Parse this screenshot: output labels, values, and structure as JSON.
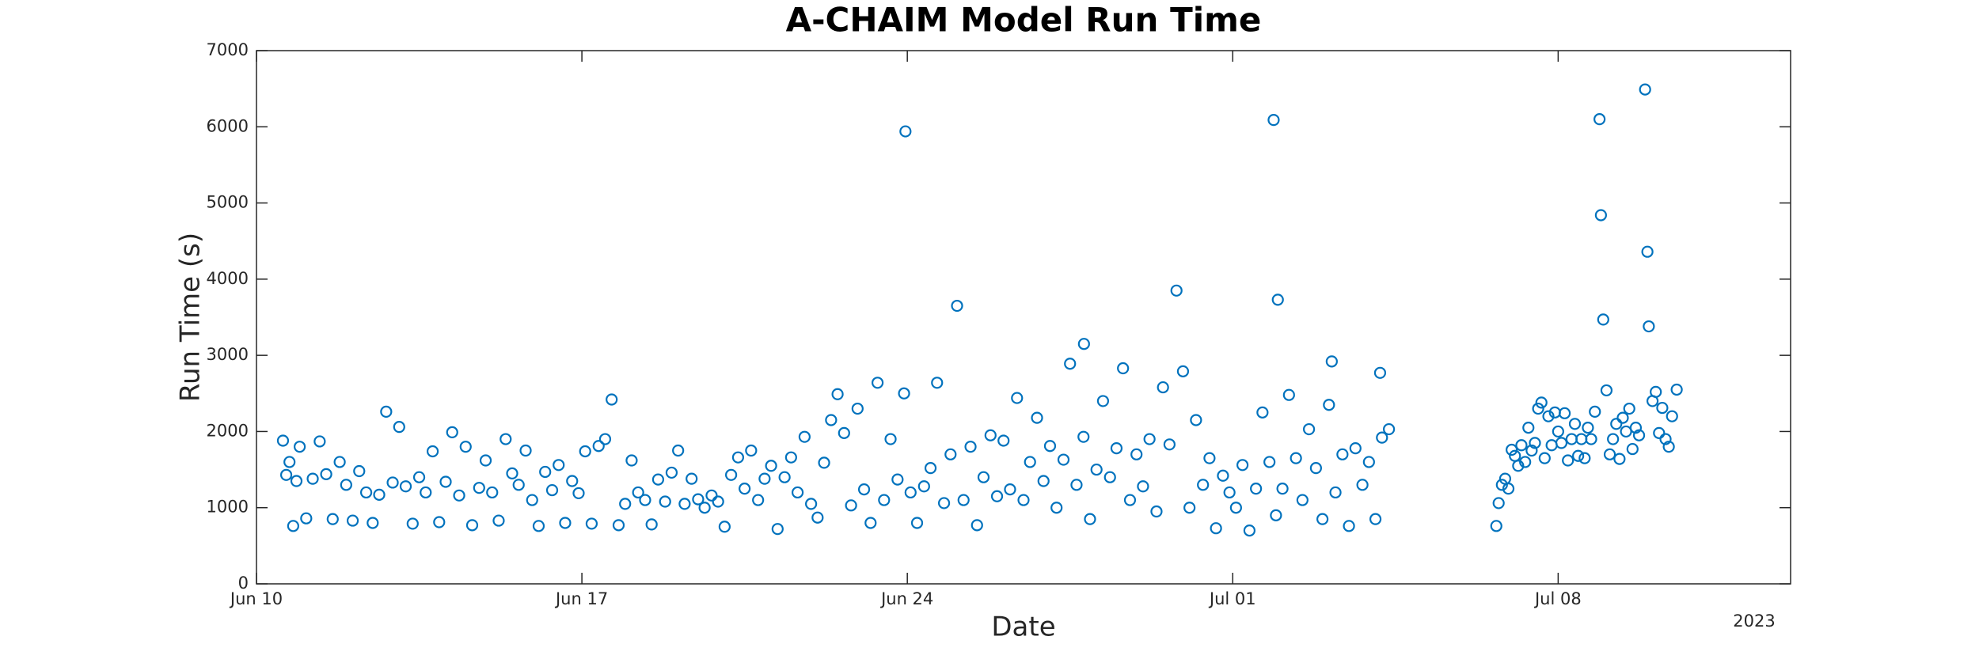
{
  "chart_data": {
    "type": "scatter",
    "title": "A-CHAIM Model Run Time",
    "xlabel": "Date",
    "ylabel": "Run Time (s)",
    "x_secondary_label": "2023",
    "color": "#0072bd",
    "grid": false,
    "xlim": [
      0,
      33
    ],
    "xticks": [
      {
        "value": 0,
        "label": "Jun 10"
      },
      {
        "value": 7,
        "label": "Jun 17"
      },
      {
        "value": 14,
        "label": "Jun 24"
      },
      {
        "value": 21,
        "label": "Jul 01"
      },
      {
        "value": 28,
        "label": "Jul 08"
      }
    ],
    "ylim": [
      0,
      7000
    ],
    "yticks": [
      0,
      1000,
      2000,
      3000,
      4000,
      5000,
      6000,
      7000
    ],
    "x": [
      0.57,
      0.64,
      0.71,
      0.79,
      0.86,
      0.93,
      1.07,
      1.21,
      1.36,
      1.5,
      1.64,
      1.79,
      1.93,
      2.07,
      2.21,
      2.36,
      2.5,
      2.64,
      2.79,
      2.93,
      3.07,
      3.21,
      3.36,
      3.5,
      3.64,
      3.79,
      3.93,
      4.07,
      4.21,
      4.36,
      4.5,
      4.64,
      4.79,
      4.93,
      5.07,
      5.21,
      5.36,
      5.5,
      5.64,
      5.79,
      5.93,
      6.07,
      6.21,
      6.36,
      6.5,
      6.64,
      6.79,
      6.93,
      7.07,
      7.21,
      7.36,
      7.5,
      7.64,
      7.79,
      7.93,
      8.07,
      8.21,
      8.36,
      8.5,
      8.64,
      8.79,
      8.93,
      9.07,
      9.21,
      9.36,
      9.5,
      9.64,
      9.79,
      9.93,
      10.07,
      10.21,
      10.36,
      10.5,
      10.64,
      10.79,
      10.93,
      11.07,
      11.21,
      11.36,
      11.5,
      11.64,
      11.79,
      11.93,
      12.07,
      12.21,
      12.36,
      12.5,
      12.64,
      12.79,
      12.93,
      13.07,
      13.21,
      13.36,
      13.5,
      13.64,
      13.79,
      13.93,
      13.96,
      14.07,
      14.21,
      14.36,
      14.5,
      14.64,
      14.79,
      14.93,
      15.07,
      15.21,
      15.36,
      15.5,
      15.64,
      15.79,
      15.93,
      16.07,
      16.21,
      16.36,
      16.5,
      16.64,
      16.79,
      16.93,
      17.07,
      17.21,
      17.36,
      17.5,
      17.64,
      17.79,
      17.8,
      17.93,
      18.07,
      18.21,
      18.36,
      18.5,
      18.64,
      18.79,
      18.93,
      19.07,
      19.21,
      19.36,
      19.5,
      19.64,
      19.79,
      19.93,
      20.07,
      20.21,
      20.36,
      20.5,
      20.64,
      20.79,
      20.93,
      21.07,
      21.21,
      21.36,
      21.5,
      21.64,
      21.79,
      21.88,
      21.93,
      21.97,
      22.07,
      22.21,
      22.36,
      22.5,
      22.64,
      22.79,
      22.93,
      23.07,
      23.13,
      23.21,
      23.36,
      23.5,
      23.64,
      23.79,
      23.93,
      24.07,
      24.17,
      24.21,
      24.36,
      26.67,
      26.72,
      26.79,
      26.86,
      26.93,
      27.0,
      27.07,
      27.14,
      27.21,
      27.29,
      27.36,
      27.43,
      27.5,
      27.57,
      27.64,
      27.71,
      27.79,
      27.86,
      27.93,
      28.0,
      28.07,
      28.14,
      28.21,
      28.29,
      28.36,
      28.43,
      28.5,
      28.57,
      28.64,
      28.71,
      28.79,
      28.89,
      28.92,
      28.97,
      29.04,
      29.11,
      29.18,
      29.25,
      29.32,
      29.39,
      29.46,
      29.53,
      29.6,
      29.67,
      29.74,
      29.87,
      29.92,
      29.95,
      30.03,
      30.1,
      30.17,
      30.24,
      30.31,
      30.38,
      30.45,
      30.55
    ],
    "values": [
      1880,
      1430,
      1600,
      760,
      1350,
      1800,
      860,
      1380,
      1870,
      1440,
      850,
      1600,
      1300,
      830,
      1480,
      1200,
      800,
      1170,
      2260,
      1330,
      2060,
      1280,
      790,
      1400,
      1200,
      1740,
      810,
      1340,
      1990,
      1160,
      1800,
      770,
      1260,
      1620,
      1200,
      830,
      1900,
      1450,
      1300,
      1750,
      1100,
      760,
      1470,
      1230,
      1560,
      800,
      1350,
      1190,
      1740,
      790,
      1810,
      1900,
      2420,
      770,
      1050,
      1620,
      1200,
      1100,
      780,
      1370,
      1080,
      1460,
      1750,
      1050,
      1380,
      1110,
      1000,
      1160,
      1080,
      750,
      1430,
      1660,
      1250,
      1750,
      1100,
      1380,
      1550,
      720,
      1400,
      1660,
      1200,
      1930,
      1050,
      870,
      1590,
      2150,
      2490,
      1980,
      1030,
      2300,
      1240,
      800,
      2640,
      1100,
      1900,
      1370,
      2500,
      5940,
      1200,
      800,
      1280,
      1520,
      2640,
      1060,
      1700,
      3650,
      1100,
      1800,
      770,
      1400,
      1950,
      1150,
      1880,
      1240,
      2440,
      1100,
      1600,
      2180,
      1350,
      1810,
      1000,
      1630,
      2890,
      1300,
      1930,
      3150,
      850,
      1500,
      2400,
      1400,
      1780,
      2830,
      1100,
      1700,
      1280,
      1900,
      950,
      2580,
      1830,
      3850,
      2790,
      1000,
      2150,
      1300,
      1650,
      730,
      1420,
      1200,
      1000,
      1560,
      700,
      1250,
      2250,
      1600,
      6090,
      900,
      3730,
      1250,
      2480,
      1650,
      1100,
      2030,
      1520,
      850,
      2350,
      2920,
      1200,
      1700,
      760,
      1780,
      1300,
      1600,
      850,
      2770,
      1920,
      2030,
      760,
      1060,
      1300,
      1380,
      1250,
      1760,
      1680,
      1550,
      1820,
      1600,
      2050,
      1750,
      1850,
      2300,
      2380,
      1650,
      2200,
      1820,
      2250,
      2000,
      1850,
      2240,
      1620,
      1900,
      2100,
      1680,
      1900,
      1650,
      2050,
      1900,
      2260,
      6100,
      4840,
      3470,
      2540,
      1700,
      1900,
      2100,
      1640,
      2180,
      2000,
      2300,
      1770,
      2050,
      1950,
      6490,
      4360,
      3380,
      2400,
      2520,
      1980,
      2310,
      1900,
      1800,
      2200,
      2550
    ]
  }
}
